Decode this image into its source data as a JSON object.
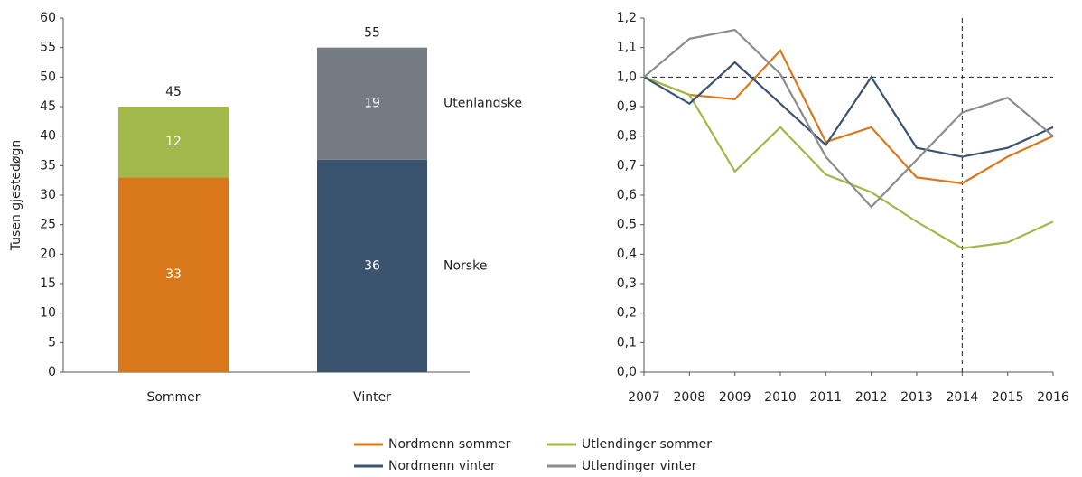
{
  "chart_data": [
    {
      "type": "stacked_bar",
      "y_label": "Tusen gjestedøgn",
      "categories": [
        "Sommer",
        "Vinter"
      ],
      "series": [
        {
          "name": "Norske",
          "colors": [
            "#d9781a",
            "#3a5470"
          ],
          "values": [
            33,
            36
          ]
        },
        {
          "name": "Utenlandske",
          "colors": [
            "#a2b84a",
            "#757b82"
          ],
          "values": [
            12,
            19
          ]
        }
      ],
      "total_labels": [
        45,
        55
      ],
      "ylim": [
        0,
        60
      ],
      "yticks": [
        0,
        5,
        10,
        15,
        20,
        25,
        30,
        35,
        40,
        45,
        50,
        55,
        60
      ]
    },
    {
      "type": "line",
      "x": [
        2007,
        2008,
        2009,
        2010,
        2011,
        2012,
        2013,
        2014,
        2015,
        2016
      ],
      "xlim": [
        2007,
        2016
      ],
      "xticks": [
        2007,
        2008,
        2009,
        2010,
        2011,
        2012,
        2013,
        2014,
        2015,
        2016
      ],
      "ylim": [
        0,
        1.2
      ],
      "yticks": [
        {
          "value": 0,
          "label": "0,0"
        },
        {
          "value": 0.1,
          "label": "0,1"
        },
        {
          "value": 0.2,
          "label": "0,2"
        },
        {
          "value": 0.3,
          "label": "0,3"
        },
        {
          "value": 0.4,
          "label": "0,4"
        },
        {
          "value": 0.5,
          "label": "0,5"
        },
        {
          "value": 0.6,
          "label": "0,6"
        },
        {
          "value": 0.7,
          "label": "0,7"
        },
        {
          "value": 0.8,
          "label": "0,8"
        },
        {
          "value": 0.9,
          "label": "0,9"
        },
        {
          "value": 1.0,
          "label": "1,0"
        },
        {
          "value": 1.1,
          "label": "1,1"
        },
        {
          "value": 1.2,
          "label": "1,2"
        }
      ],
      "hline": 1.0,
      "vline": 2014,
      "series": [
        {
          "name": "Nordmenn sommer",
          "color": "#d9781a",
          "values": [
            1.0,
            0.94,
            0.925,
            1.09,
            0.78,
            0.83,
            0.66,
            0.64,
            0.73,
            0.8
          ]
        },
        {
          "name": "Utlendinger sommer",
          "color": "#a2b84a",
          "values": [
            1.0,
            0.94,
            0.68,
            0.83,
            0.67,
            0.61,
            0.51,
            0.42,
            0.44,
            0.51
          ]
        },
        {
          "name": "Nordmenn vinter",
          "color": "#3a5470",
          "values": [
            1.0,
            0.91,
            1.05,
            0.91,
            0.77,
            1.0,
            0.76,
            0.73,
            0.76,
            0.83
          ]
        },
        {
          "name": "Utlendinger vinter",
          "color": "#8c8c8c",
          "values": [
            1.0,
            1.13,
            1.16,
            1.01,
            0.73,
            0.56,
            0.72,
            0.88,
            0.93,
            0.8
          ]
        }
      ]
    }
  ]
}
